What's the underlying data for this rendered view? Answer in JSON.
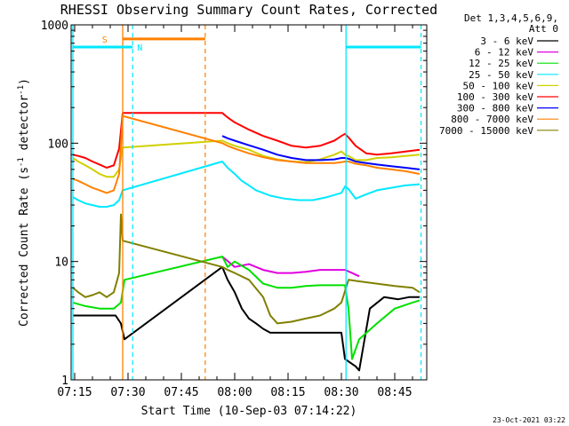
{
  "chart_data": {
    "type": "line",
    "title": "RHESSI Observing Summary Count Rates, Corrected",
    "xlabel": "Start Time (10-Sep-03 07:14:22)",
    "ylabel_main": "Corrected Count Rate (s",
    "ylabel_sup1": "-1",
    "ylabel_mid": " detector",
    "ylabel_sup2": "-1",
    "ylabel_end": ")",
    "y_scale": "log",
    "ylim": [
      1,
      1000
    ],
    "xlim": [
      434,
      534
    ],
    "x_unit": "minutes after 00:00 UT, 10-Sep-03",
    "x_ticks": [
      {
        "value": 435,
        "label": "07:15"
      },
      {
        "value": 450,
        "label": "07:30"
      },
      {
        "value": 465,
        "label": "07:45"
      },
      {
        "value": 480,
        "label": "08:00"
      },
      {
        "value": 495,
        "label": "08:15"
      },
      {
        "value": 510,
        "label": "08:30"
      },
      {
        "value": 525,
        "label": "08:45"
      }
    ],
    "y_ticks": [
      {
        "value": 1,
        "label": "1"
      },
      {
        "value": 10,
        "label": "10"
      },
      {
        "value": 100,
        "label": "100"
      },
      {
        "value": 1000,
        "label": "1000"
      }
    ],
    "legend_header": [
      "Det 1,3,4,5,6,9,",
      "Att 0"
    ],
    "legend_placement": "right",
    "series": [
      {
        "name": "3 - 6 keV",
        "color": "#000000",
        "x": [
          434.5,
          440,
          446.5,
          448,
          449,
          476.5,
          478,
          480,
          482,
          484,
          486,
          488,
          490,
          495,
          500,
          505,
          510,
          511,
          514,
          515,
          518,
          522,
          526,
          529,
          532
        ],
        "y": [
          3.5,
          3.5,
          3.5,
          3,
          2.2,
          9,
          7,
          5.5,
          4,
          3.3,
          3,
          2.7,
          2.5,
          2.5,
          2.5,
          2.5,
          2.5,
          1.5,
          1.3,
          1.2,
          4,
          5,
          4.8,
          5,
          5
        ]
      },
      {
        "name": "6 - 12 keV",
        "color": "#e000e0",
        "x": [
          476.5,
          480,
          484,
          488,
          492,
          496,
          500,
          504,
          508,
          511,
          513,
          515
        ],
        "y": [
          11,
          9,
          9.5,
          8.5,
          8,
          8,
          8.2,
          8.5,
          8.5,
          8.5,
          8,
          7.5
        ]
      },
      {
        "name": "12 - 25 keV",
        "color": "#00e000",
        "x": [
          434.5,
          438,
          442,
          446,
          448,
          449,
          476.5,
          478,
          480,
          484,
          488,
          492,
          496,
          500,
          504,
          508,
          511,
          512,
          513,
          515,
          520,
          525,
          530,
          532
        ],
        "y": [
          4.5,
          4.2,
          4,
          4,
          4.5,
          7,
          11,
          9,
          10,
          8.5,
          6.5,
          6,
          6,
          6.2,
          6.3,
          6.3,
          6.3,
          4,
          1.5,
          2.2,
          3,
          4,
          4.5,
          4.7
        ]
      },
      {
        "name": "25 - 50 keV",
        "color": "#00e8ff",
        "x": [
          434.5,
          436,
          438,
          440,
          442,
          444,
          446,
          447.5,
          448.5,
          476.5,
          478,
          480,
          482,
          484,
          486,
          488,
          490,
          494,
          498,
          502,
          506,
          510,
          511,
          512,
          514,
          517,
          520,
          524,
          528,
          532
        ],
        "y": [
          35,
          33,
          31,
          30,
          29,
          29,
          30,
          33,
          40,
          70,
          62,
          55,
          48,
          44,
          40,
          38,
          36,
          34,
          33,
          33,
          35,
          38,
          43,
          41,
          34,
          37,
          40,
          42,
          44,
          45
        ]
      },
      {
        "name": "50 - 100 keV",
        "color": "#d0d000",
        "x": [
          434.5,
          436,
          438,
          440,
          442,
          444,
          446,
          447.5,
          448.5,
          476.5,
          478,
          480,
          484,
          488,
          492,
          496,
          500,
          504,
          508,
          510,
          511,
          512,
          514,
          517,
          520,
          524,
          528,
          532
        ],
        "y": [
          75,
          70,
          65,
          60,
          55,
          52,
          52,
          60,
          92,
          105,
          100,
          95,
          88,
          78,
          73,
          70,
          69,
          73,
          80,
          85,
          80,
          78,
          72,
          72,
          75,
          76,
          78,
          80
        ]
      },
      {
        "name": "100 - 300 keV",
        "color": "#ff0000",
        "x": [
          434.5,
          436,
          438,
          440,
          442,
          444,
          446,
          447.5,
          448.5,
          476.5,
          478,
          480,
          484,
          488,
          492,
          496,
          500,
          504,
          508,
          510,
          511,
          512,
          514,
          517,
          520,
          524,
          528,
          532
        ],
        "y": [
          80,
          78,
          75,
          70,
          66,
          62,
          65,
          90,
          180,
          180,
          165,
          150,
          130,
          115,
          105,
          95,
          92,
          95,
          105,
          115,
          120,
          112,
          95,
          82,
          80,
          82,
          85,
          88
        ]
      },
      {
        "name": "300 - 800 keV",
        "color": "#0000ff",
        "x": [
          476.5,
          478,
          480,
          484,
          488,
          492,
          496,
          500,
          504,
          508,
          510,
          511,
          512,
          514,
          517,
          520,
          524,
          528,
          532
        ],
        "y": [
          115,
          110,
          105,
          96,
          88,
          80,
          75,
          72,
          72,
          73,
          75,
          75,
          74,
          70,
          68,
          66,
          64,
          62,
          60
        ]
      },
      {
        "name": "800 - 7000 keV",
        "color": "#ff8000",
        "x": [
          434.5,
          436,
          438,
          440,
          442,
          444,
          446,
          447.5,
          448.5,
          476.5,
          478,
          480,
          484,
          488,
          492,
          496,
          500,
          504,
          508,
          510,
          511,
          512,
          514,
          517,
          520,
          524,
          528,
          532
        ],
        "y": [
          50,
          48,
          45,
          42,
          40,
          38,
          40,
          55,
          170,
          100,
          95,
          90,
          82,
          76,
          72,
          70,
          68,
          68,
          68,
          69,
          70,
          70,
          67,
          65,
          62,
          60,
          58,
          55
        ]
      },
      {
        "name": "7000 - 15000 keV",
        "color": "#808000",
        "x": [
          434.5,
          436,
          438,
          440,
          442,
          444,
          446,
          447.5,
          448,
          448.5,
          476.5,
          478,
          480,
          484,
          488,
          490,
          492,
          496,
          500,
          504,
          508,
          510,
          512,
          515,
          520,
          525,
          530,
          532
        ],
        "y": [
          6,
          5.5,
          5,
          5.2,
          5.5,
          5,
          5.5,
          8,
          25,
          15,
          9,
          8.5,
          8,
          7,
          5,
          3.5,
          3,
          3.1,
          3.3,
          3.5,
          4,
          4.5,
          7,
          6.8,
          6.5,
          6.2,
          6,
          5.5
        ]
      }
    ],
    "markers": [
      {
        "label": "S",
        "color": "#ff8000",
        "solid_x": 448.5,
        "dashed_x": 471.7,
        "bar_y": 760
      },
      {
        "label": "N",
        "color": "#00e8ff",
        "solid_x": 434.5,
        "dashed_x": 451.3,
        "bar_y": 650
      },
      {
        "label": "",
        "color": "#00e8ff",
        "solid_x": 511.3,
        "dashed_x": 532.4,
        "bar_y": 650
      }
    ]
  },
  "footer_date": "23-Oct-2021 03:22"
}
